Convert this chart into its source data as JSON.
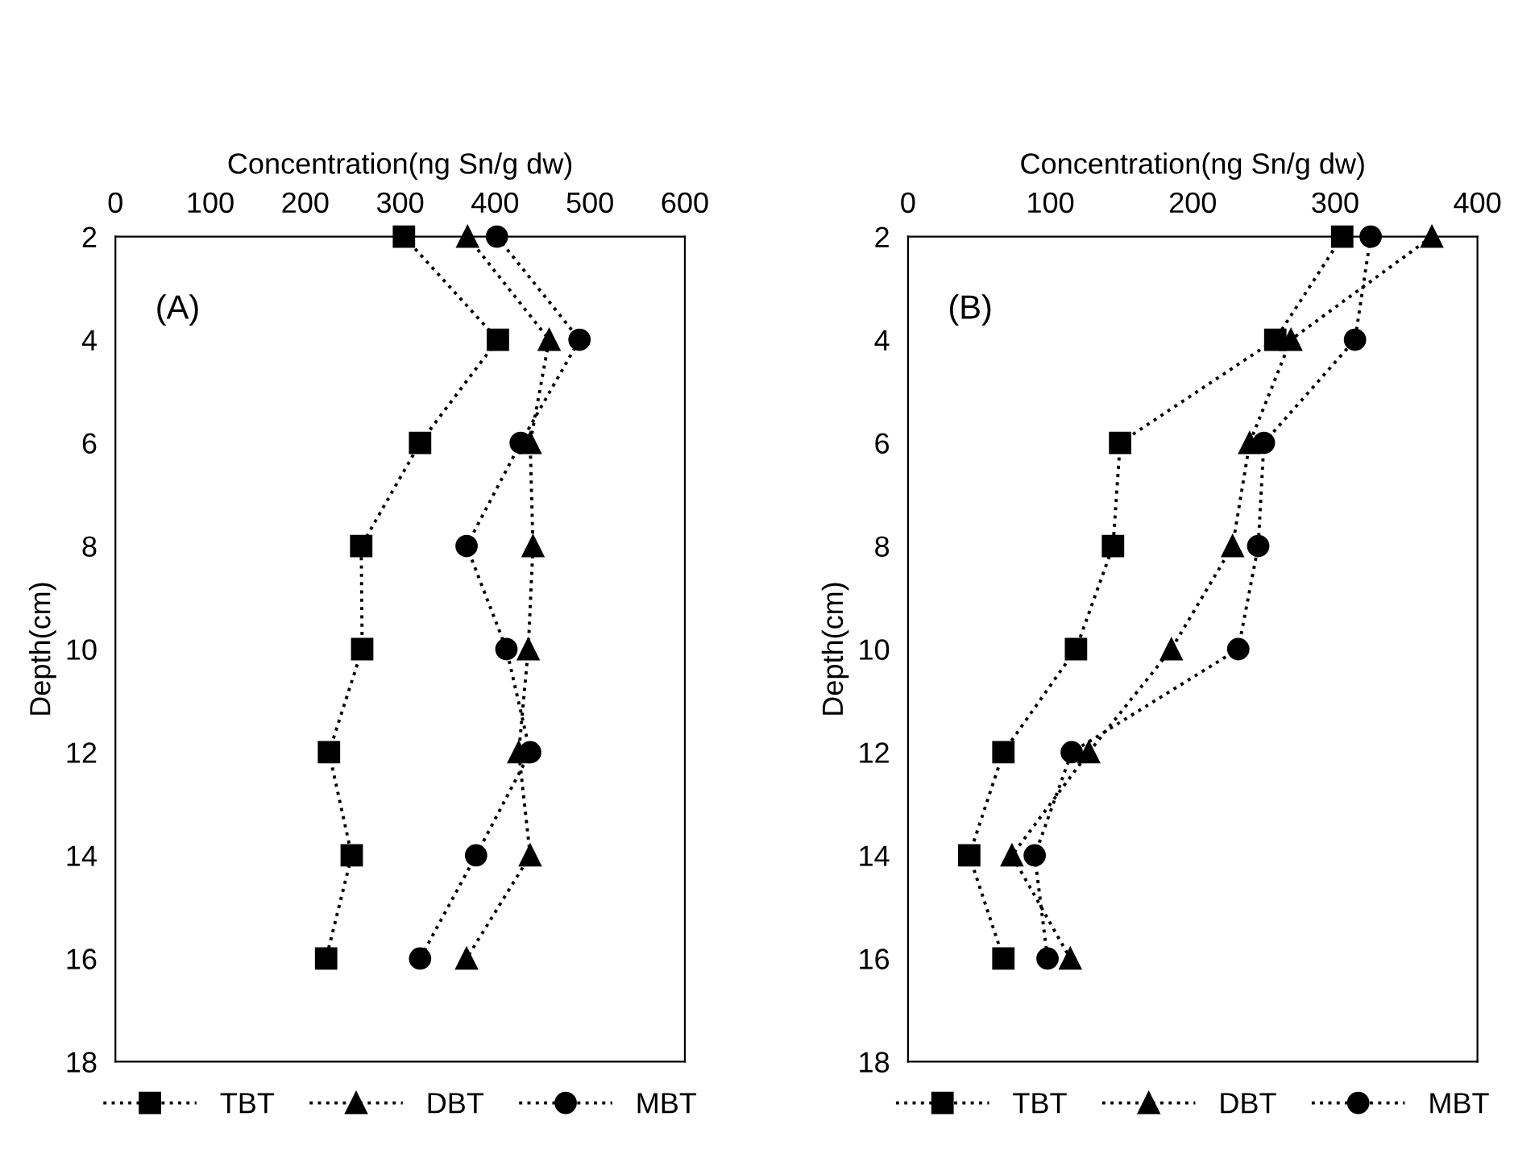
{
  "chart_data": [
    {
      "type": "line",
      "xlabel": "Concentration(ng Sn/g dw)",
      "ylabel": "Depth(cm)",
      "annotations": [
        "(A)"
      ],
      "xlim": [
        0,
        600
      ],
      "xticks": [
        0,
        100,
        200,
        300,
        400,
        500,
        600
      ],
      "ylim": [
        18,
        2
      ],
      "yticks": [
        2,
        4,
        6,
        8,
        10,
        12,
        14,
        16,
        18
      ],
      "line_style": "dotted",
      "legend": "bottom",
      "grid": false,
      "series": [
        {
          "name": "TBT",
          "color": "#000000",
          "marker": "square",
          "x": [
            304,
            403,
            321,
            259,
            260,
            225,
            249,
            222
          ],
          "values": [
            2,
            4,
            6,
            8,
            10,
            12,
            14,
            16
          ]
        },
        {
          "name": "DBT",
          "color": "#000000",
          "marker": "triangle",
          "x": [
            371,
            457,
            437,
            440,
            435,
            425,
            437,
            370
          ],
          "values": [
            2,
            4,
            6,
            8,
            10,
            12,
            14,
            16
          ]
        },
        {
          "name": "MBT",
          "color": "#000000",
          "marker": "circle",
          "x": [
            402,
            489,
            427,
            370,
            412,
            437,
            380,
            321
          ],
          "values": [
            2,
            4,
            6,
            8,
            10,
            12,
            14,
            16
          ]
        }
      ]
    },
    {
      "type": "line",
      "xlabel": "Concentration(ng Sn/g dw)",
      "ylabel": "Depth(cm)",
      "annotations": [
        "(B)"
      ],
      "xlim": [
        0,
        400
      ],
      "xticks": [
        0,
        100,
        200,
        300,
        400
      ],
      "ylim": [
        18,
        2
      ],
      "yticks": [
        2,
        4,
        6,
        8,
        10,
        12,
        14,
        16,
        18
      ],
      "line_style": "dotted",
      "legend": "bottom",
      "grid": false,
      "series": [
        {
          "name": "TBT",
          "color": "#000000",
          "marker": "square",
          "x": [
            305,
            258,
            149,
            144,
            118,
            67,
            43,
            67
          ],
          "values": [
            2,
            4,
            6,
            8,
            10,
            12,
            14,
            16
          ]
        },
        {
          "name": "DBT",
          "color": "#000000",
          "marker": "triangle",
          "x": [
            368,
            269,
            240,
            228,
            185,
            127,
            73,
            114
          ],
          "values": [
            2,
            4,
            6,
            8,
            10,
            12,
            14,
            16
          ]
        },
        {
          "name": "MBT",
          "color": "#000000",
          "marker": "circle",
          "x": [
            325,
            314,
            250,
            246,
            232,
            115,
            89,
            98
          ],
          "values": [
            2,
            4,
            6,
            8,
            10,
            12,
            14,
            16
          ]
        }
      ]
    }
  ]
}
